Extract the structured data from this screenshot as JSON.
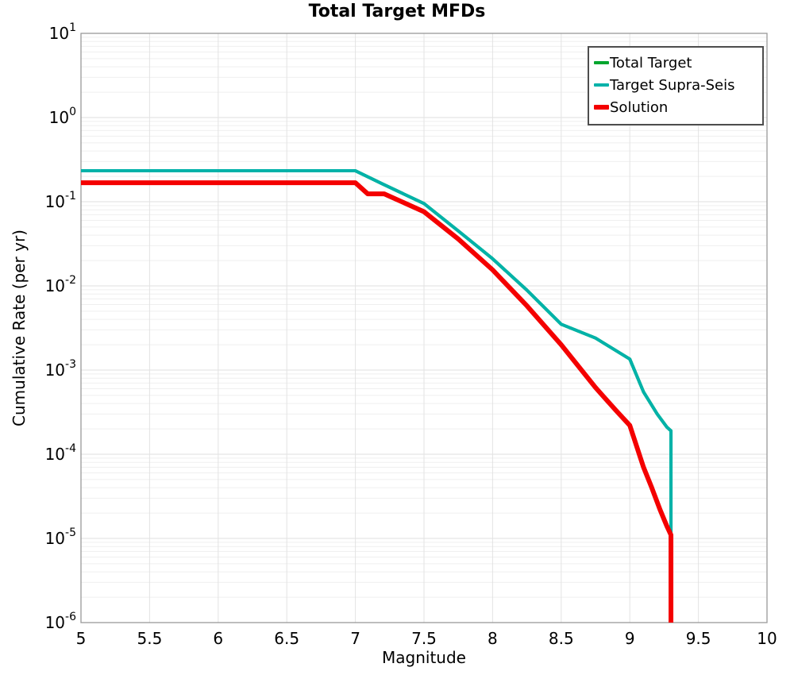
{
  "title": "Total Target MFDs",
  "axes": {
    "xlabel": "Magnitude",
    "ylabel": "Cumulative Rate (per yr)",
    "x_ticks": [
      "5",
      "5.5",
      "6",
      "6.5",
      "7",
      "7.5",
      "8",
      "8.5",
      "9",
      "9.5",
      "10"
    ],
    "y_tick_exponents": [
      1,
      0,
      -1,
      -2,
      -3,
      -4,
      -5,
      -6
    ],
    "grid": true
  },
  "legend": {
    "position": "upper-right",
    "items": [
      {
        "label": "Total Target",
        "color": "#00a62e",
        "thickness": 4
      },
      {
        "label": "Target Supra-Seis",
        "color": "#00b2a9",
        "thickness": 4
      },
      {
        "label": "Solution",
        "color": "#f40000",
        "thickness": 6
      }
    ]
  },
  "chart_data": {
    "type": "line",
    "title": "Total Target MFDs",
    "xlabel": "Magnitude",
    "ylabel": "Cumulative Rate (per yr)",
    "x_scale": "linear",
    "y_scale": "log",
    "xlim": [
      5,
      10
    ],
    "ylim": [
      1e-06,
      10
    ],
    "legend_position": "upper-right",
    "grid": true,
    "note": "Total Target coincides with Target Supra-Seis and is hidden beneath it; both drop vertically at M~9.3. Solution has a small step near M7.1 and drops vertically at M~9.3.",
    "series": [
      {
        "name": "Total Target",
        "color": "#00a62e",
        "width": 4,
        "points": [
          [
            5.0,
            0.233
          ],
          [
            7.0,
            0.233
          ],
          [
            7.2,
            0.162
          ],
          [
            7.5,
            0.095
          ],
          [
            7.75,
            0.045
          ],
          [
            8.0,
            0.021
          ],
          [
            8.25,
            0.0089
          ],
          [
            8.5,
            0.0035
          ],
          [
            8.75,
            0.0024
          ],
          [
            9.0,
            0.00135
          ],
          [
            9.1,
            0.00055
          ],
          [
            9.2,
            0.0003
          ],
          [
            9.27,
            0.00021
          ],
          [
            9.3,
            0.00019
          ],
          [
            9.3,
            1e-06
          ]
        ]
      },
      {
        "name": "Target Supra-Seis",
        "color": "#00b2a9",
        "width": 4,
        "points": [
          [
            5.0,
            0.233
          ],
          [
            7.0,
            0.233
          ],
          [
            7.2,
            0.162
          ],
          [
            7.5,
            0.095
          ],
          [
            7.75,
            0.045
          ],
          [
            8.0,
            0.021
          ],
          [
            8.25,
            0.0089
          ],
          [
            8.5,
            0.0035
          ],
          [
            8.75,
            0.0024
          ],
          [
            9.0,
            0.00135
          ],
          [
            9.1,
            0.00055
          ],
          [
            9.2,
            0.0003
          ],
          [
            9.27,
            0.00021
          ],
          [
            9.3,
            0.00019
          ],
          [
            9.3,
            1e-06
          ]
        ]
      },
      {
        "name": "Solution",
        "color": "#f40000",
        "width": 6,
        "points": [
          [
            5.0,
            0.168
          ],
          [
            7.0,
            0.168
          ],
          [
            7.09,
            0.124
          ],
          [
            7.21,
            0.124
          ],
          [
            7.5,
            0.076
          ],
          [
            7.75,
            0.036
          ],
          [
            8.0,
            0.0155
          ],
          [
            8.25,
            0.0058
          ],
          [
            8.5,
            0.002
          ],
          [
            8.75,
            0.00062
          ],
          [
            8.9,
            0.00033
          ],
          [
            9.0,
            0.00022
          ],
          [
            9.1,
            7e-05
          ],
          [
            9.16,
            4e-05
          ],
          [
            9.22,
            2.2e-05
          ],
          [
            9.27,
            1.4e-05
          ],
          [
            9.3,
            1.1e-05
          ],
          [
            9.3,
            1e-06
          ]
        ]
      }
    ]
  },
  "style_colors": {
    "plot_border": "#999999",
    "grid_major": "#dfdfdf",
    "grid_minor": "#efefef",
    "grid_vertical": "#e3e3e3",
    "text": "#000000",
    "legend_border": "#4d4d4d"
  }
}
